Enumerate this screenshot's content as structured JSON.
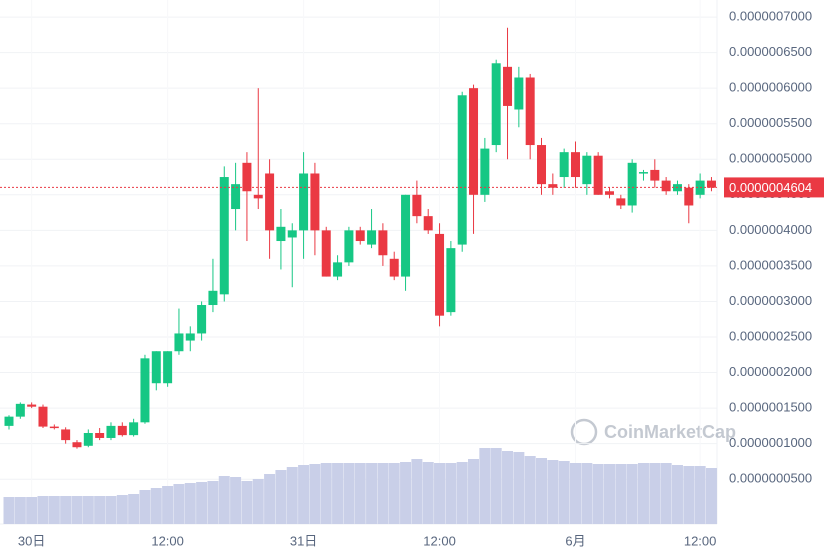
{
  "chart_data": {
    "type": "candlestick",
    "open": [
      1.25e-07,
      1.38e-07,
      1.55e-07,
      1.52e-07,
      1.24e-07,
      1.2e-07,
      1.02e-07,
      9.7e-08,
      1.15e-07,
      1.08e-07,
      1.25e-07,
      1.12e-07,
      1.3e-07,
      1.85e-07,
      1.85e-07,
      2.3e-07,
      2.45e-07,
      2.55e-07,
      2.95e-07,
      3.1e-07,
      4.3e-07,
      4.95e-07,
      4.5e-07,
      4.8e-07,
      3.85e-07,
      3.9e-07,
      4e-07,
      4.8e-07,
      4e-07,
      3.35e-07,
      3.55e-07,
      4e-07,
      3.8e-07,
      4e-07,
      3.6e-07,
      3.35e-07,
      4.5e-07,
      4.2e-07,
      3.95e-07,
      2.85e-07,
      3.8e-07,
      6e-07,
      4.5e-07,
      5.2e-07,
      6.3e-07,
      5.7e-07,
      6.15e-07,
      5.2e-07,
      4.65e-07,
      4.75e-07,
      5.1e-07,
      4.65e-07,
      5.05e-07,
      4.55e-07,
      4.45e-07,
      4.35e-07,
      4.8e-07,
      4.85e-07,
      4.7e-07,
      4.55e-07,
      4.6e-07,
      4.5e-07,
      4.7e-07
    ],
    "high": [
      1.4e-07,
      1.58e-07,
      1.58e-07,
      1.55e-07,
      1.27e-07,
      1.23e-07,
      1.05e-07,
      1.2e-07,
      1.22e-07,
      1.3e-07,
      1.3e-07,
      1.35e-07,
      2.25e-07,
      2.3e-07,
      2.3e-07,
      2.9e-07,
      2.65e-07,
      3e-07,
      3.6e-07,
      4.9e-07,
      4.95e-07,
      5.1e-07,
      6e-07,
      5e-07,
      4.3e-07,
      4.1e-07,
      5.1e-07,
      4.95e-07,
      4.05e-07,
      3.65e-07,
      4.05e-07,
      4.05e-07,
      4.3e-07,
      4.1e-07,
      3.7e-07,
      4.5e-07,
      4.7e-07,
      4.3e-07,
      4.1e-07,
      3.85e-07,
      5.95e-07,
      6.05e-07,
      5.3e-07,
      6.4e-07,
      6.85e-07,
      6.3e-07,
      6.2e-07,
      5.3e-07,
      4.8e-07,
      5.15e-07,
      5.25e-07,
      5.1e-07,
      5.1e-07,
      4.6e-07,
      4.5e-07,
      5e-07,
      4.85e-07,
      5e-07,
      4.75e-07,
      4.7e-07,
      4.65e-07,
      4.8e-07,
      4.75e-07
    ],
    "low": [
      1.2e-07,
      1.35e-07,
      1.5e-07,
      1.22e-07,
      1.2e-07,
      1e-07,
      9.3e-08,
      9.5e-08,
      1.05e-07,
      1.05e-07,
      1.1e-07,
      1.1e-07,
      1.28e-07,
      1.75e-07,
      1.8e-07,
      2.25e-07,
      2.3e-07,
      2.45e-07,
      2.85e-07,
      3e-07,
      4e-07,
      3.85e-07,
      4.3e-07,
      3.6e-07,
      3.45e-07,
      3.2e-07,
      3.6e-07,
      3.65e-07,
      3.35e-07,
      3.3e-07,
      3.5e-07,
      3.8e-07,
      3.75e-07,
      3.5e-07,
      3.3e-07,
      3.15e-07,
      4.1e-07,
      3.95e-07,
      2.65e-07,
      2.8e-07,
      3.7e-07,
      3.95e-07,
      4.4e-07,
      5.1e-07,
      5e-07,
      5.45e-07,
      5e-07,
      4.5e-07,
      4.5e-07,
      4.6e-07,
      4.6e-07,
      4.5e-07,
      4.5e-07,
      4.45e-07,
      4.3e-07,
      4.25e-07,
      4.7e-07,
      4.6e-07,
      4.5e-07,
      4.5e-07,
      4.1e-07,
      4.45e-07,
      4.55e-07
    ],
    "close": [
      1.38e-07,
      1.56e-07,
      1.52e-07,
      1.24e-07,
      1.22e-07,
      1.05e-07,
      9.5e-08,
      1.15e-07,
      1.08e-07,
      1.25e-07,
      1.12e-07,
      1.3e-07,
      2.2e-07,
      2.3e-07,
      2.3e-07,
      2.55e-07,
      2.55e-07,
      2.95e-07,
      3.15e-07,
      4.75e-07,
      4.65e-07,
      4.55e-07,
      4.45e-07,
      4e-07,
      4.05e-07,
      4e-07,
      4.8e-07,
      4e-07,
      3.35e-07,
      3.55e-07,
      4e-07,
      3.85e-07,
      4e-07,
      3.65e-07,
      3.35e-07,
      4.5e-07,
      4.2e-07,
      4e-07,
      2.8e-07,
      3.75e-07,
      5.9e-07,
      4.5e-07,
      5.15e-07,
      6.35e-07,
      5.75e-07,
      6.15e-07,
      5.2e-07,
      4.65e-07,
      4.6e-07,
      5.1e-07,
      4.75e-07,
      5.05e-07,
      4.5e-07,
      4.5e-07,
      4.35e-07,
      4.95e-07,
      4.82e-07,
      4.7e-07,
      4.55e-07,
      4.65e-07,
      4.35e-07,
      4.7e-07,
      4.6e-07
    ],
    "volume": [
      27,
      27,
      27,
      28,
      28,
      28,
      28,
      28,
      28,
      28,
      29,
      30,
      34,
      36,
      38,
      40,
      41,
      42,
      43,
      48,
      47,
      43,
      45,
      50,
      54,
      57,
      59,
      60,
      61,
      61,
      61,
      61,
      61,
      61,
      61,
      62,
      65,
      62,
      61,
      61,
      62,
      65,
      76,
      76,
      73,
      72,
      68,
      66,
      64,
      63,
      61,
      61,
      60,
      60,
      60,
      60,
      61,
      61,
      61,
      59,
      58,
      58,
      56
    ],
    "up_color": "#16c784",
    "down_color": "#ea3943",
    "volume_color": "#c9cfe8",
    "ylim": [
      -1.3e-08,
      7.24e-07
    ],
    "yticks": [
      {
        "value": 5e-08,
        "label": "0.0000000500"
      },
      {
        "value": 1e-07,
        "label": "0.0000001000"
      },
      {
        "value": 1.5e-07,
        "label": "0.0000001500"
      },
      {
        "value": 2e-07,
        "label": "0.0000002000"
      },
      {
        "value": 2.5e-07,
        "label": "0.0000002500"
      },
      {
        "value": 3e-07,
        "label": "0.0000003000"
      },
      {
        "value": 3.5e-07,
        "label": "0.0000003500"
      },
      {
        "value": 4e-07,
        "label": "0.0000004000"
      },
      {
        "value": 4.5e-07,
        "label": "0.0000004500"
      },
      {
        "value": 5e-07,
        "label": "0.0000005000"
      },
      {
        "value": 5.5e-07,
        "label": "0.0000005500"
      },
      {
        "value": 6e-07,
        "label": "0.0000006000"
      },
      {
        "value": 6.5e-07,
        "label": "0.0000006500"
      },
      {
        "value": 7e-07,
        "label": "0.0000007000"
      }
    ],
    "xticks": [
      {
        "value": 2,
        "label": "30日"
      },
      {
        "value": 14,
        "label": "12:00"
      },
      {
        "value": 26,
        "label": "31日"
      },
      {
        "value": 38,
        "label": "12:00"
      },
      {
        "value": 50,
        "label": "6月"
      },
      {
        "value": 61,
        "label": "12:00"
      }
    ],
    "last_price": {
      "value": 4.604e-07,
      "label": "0.0000004604"
    },
    "watermark": "CoinMarketCap",
    "grid": true
  }
}
